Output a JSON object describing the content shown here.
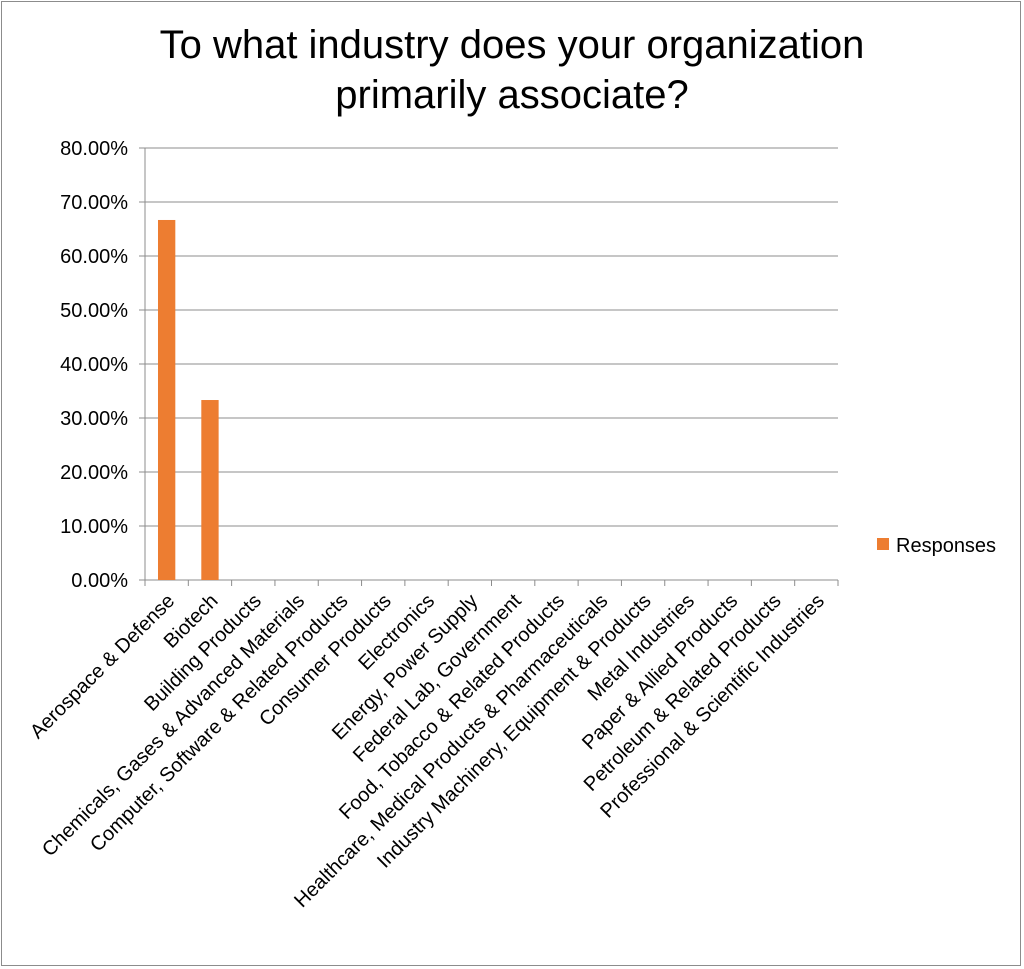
{
  "chart_data": {
    "type": "bar",
    "title": "To what industry does your organization primarily associate?",
    "categories": [
      "Aerospace & Defense",
      "Biotech",
      "Building Products",
      "Chemicals, Gases & Advanced Materials",
      "Computer, Software & Related Products",
      "Consumer Products",
      "Electronics",
      "Energy, Power Supply",
      "Federal Lab, Government",
      "Food, Tobacco & Related Products",
      "Healthcare, Medical Products & Pharmaceuticals",
      "Industry Machinery, Equipment & Products",
      "Metal Industries",
      "Paper & Allied Products",
      "Petroleum & Related Products",
      "Professional & Scientific Industries"
    ],
    "series": [
      {
        "name": "Responses",
        "values": [
          66.67,
          33.33,
          0,
          0,
          0,
          0,
          0,
          0,
          0,
          0,
          0,
          0,
          0,
          0,
          0,
          0
        ],
        "color": "#ed7d31"
      }
    ],
    "yticks": [
      "0.00%",
      "10.00%",
      "20.00%",
      "30.00%",
      "40.00%",
      "50.00%",
      "60.00%",
      "70.00%",
      "80.00%"
    ],
    "ylim": [
      0,
      80
    ],
    "xlabel": "",
    "ylabel": "",
    "grid": true,
    "legend": "right"
  }
}
